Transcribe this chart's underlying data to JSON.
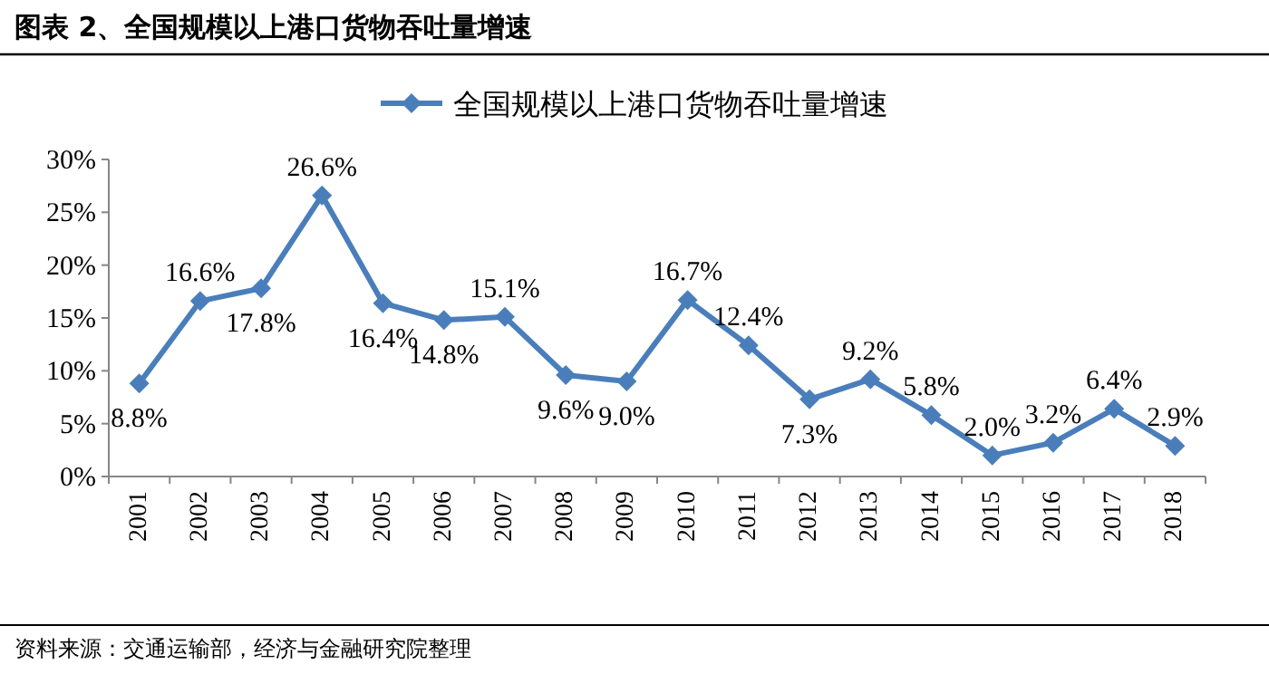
{
  "chart_data": {
    "type": "line",
    "title": "图表 2、全国规模以上港口货物吞吐量增速",
    "categories": [
      "2001",
      "2002",
      "2003",
      "2004",
      "2005",
      "2006",
      "2007",
      "2008",
      "2009",
      "2010",
      "2011",
      "2012",
      "2013",
      "2014",
      "2015",
      "2016",
      "2017",
      "2018"
    ],
    "series": [
      {
        "name": "全国规模以上港口货物吞吐量增速",
        "color": "#4a7ebb",
        "values": [
          8.8,
          16.6,
          17.8,
          26.6,
          16.4,
          14.8,
          15.1,
          9.6,
          9.0,
          16.7,
          12.4,
          7.3,
          9.2,
          5.8,
          2.0,
          3.2,
          6.4,
          2.9
        ],
        "value_labels": [
          "8.8%",
          "16.6%",
          "17.8%",
          "26.6%",
          "16.4%",
          "14.8%",
          "15.1%",
          "9.6%",
          "9.0%",
          "16.7%",
          "12.4%",
          "7.3%",
          "9.2%",
          "5.8%",
          "2.0%",
          "3.2%",
          "6.4%",
          "2.9%"
        ]
      }
    ],
    "ylim": [
      0,
      30
    ],
    "yticks": [
      {
        "value": 0,
        "label": "0%"
      },
      {
        "value": 5,
        "label": "5%"
      },
      {
        "value": 10,
        "label": "10%"
      },
      {
        "value": 15,
        "label": "15%"
      },
      {
        "value": 20,
        "label": "20%"
      },
      {
        "value": 25,
        "label": "25%"
      },
      {
        "value": 30,
        "label": "30%"
      }
    ],
    "marker": "diamond",
    "line_style": "solid",
    "grid": false,
    "legend": "top",
    "annotations": [
      "资料来源：交通运输部，经济与金融研究院整理"
    ]
  }
}
